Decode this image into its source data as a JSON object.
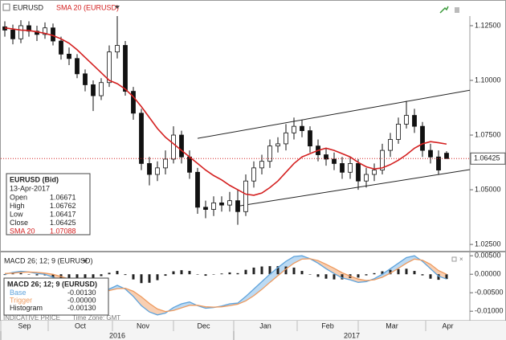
{
  "chart_data": [
    {
      "type": "candlestick",
      "symbol": "EURUSD",
      "indicator": "SMA 20 (EURUSD)",
      "candles": {
        "open": [
          1.1245,
          1.123,
          1.119,
          1.125,
          1.1225,
          1.121,
          1.124,
          1.118,
          1.112,
          1.11,
          1.103,
          1.098,
          1.093,
          1.099,
          1.113,
          1.116,
          1.095,
          1.085,
          1.062,
          1.057,
          1.06,
          1.064,
          1.075,
          1.065,
          1.058,
          1.042,
          1.041,
          1.044,
          1.043,
          1.045,
          1.04,
          1.054,
          1.06,
          1.063,
          1.07,
          1.071,
          1.076,
          1.079,
          1.077,
          1.07,
          1.066,
          1.064,
          1.062,
          1.058,
          1.062,
          1.054,
          1.057,
          1.059,
          1.068,
          1.073,
          1.08,
          1.084,
          1.079,
          1.068,
          1.065,
          1.06671
        ],
        "high": [
          1.127,
          1.1255,
          1.1275,
          1.127,
          1.125,
          1.1265,
          1.126,
          1.12,
          1.115,
          1.112,
          1.105,
          1.1,
          1.101,
          1.116,
          1.13,
          1.118,
          1.097,
          1.087,
          1.065,
          1.063,
          1.068,
          1.079,
          1.077,
          1.068,
          1.06,
          1.045,
          1.047,
          1.047,
          1.049,
          1.05,
          1.057,
          1.063,
          1.066,
          1.073,
          1.074,
          1.08,
          1.083,
          1.082,
          1.079,
          1.073,
          1.069,
          1.067,
          1.065,
          1.065,
          1.064,
          1.06,
          1.062,
          1.071,
          1.076,
          1.083,
          1.0906,
          1.087,
          1.081,
          1.071,
          1.068,
          1.06762
        ],
        "low": [
          1.12,
          1.1165,
          1.117,
          1.12,
          1.118,
          1.119,
          1.116,
          1.1095,
          1.107,
          1.101,
          1.095,
          1.086,
          1.091,
          1.097,
          1.11,
          1.093,
          1.082,
          1.059,
          1.052,
          1.054,
          1.057,
          1.062,
          1.062,
          1.055,
          1.039,
          1.037,
          1.038,
          1.04,
          1.04,
          1.034,
          1.038,
          1.051,
          1.057,
          1.06,
          1.067,
          1.068,
          1.073,
          1.074,
          1.067,
          1.063,
          1.061,
          1.059,
          1.055,
          1.055,
          1.05,
          1.051,
          1.054,
          1.057,
          1.065,
          1.071,
          1.078,
          1.076,
          1.065,
          1.062,
          1.057,
          1.06417
        ],
        "close": [
          1.123,
          1.119,
          1.125,
          1.1225,
          1.121,
          1.124,
          1.118,
          1.112,
          1.11,
          1.103,
          1.098,
          1.093,
          1.099,
          1.113,
          1.116,
          1.095,
          1.085,
          1.062,
          1.057,
          1.06,
          1.064,
          1.075,
          1.065,
          1.058,
          1.042,
          1.041,
          1.044,
          1.043,
          1.045,
          1.04,
          1.054,
          1.06,
          1.063,
          1.07,
          1.071,
          1.076,
          1.079,
          1.077,
          1.07,
          1.066,
          1.064,
          1.062,
          1.058,
          1.062,
          1.054,
          1.057,
          1.059,
          1.068,
          1.073,
          1.08,
          1.084,
          1.079,
          1.068,
          1.065,
          1.059,
          1.06425
        ]
      },
      "sma": {
        "name": "SMA 20",
        "color": "#d42020",
        "values": [
          1.124,
          1.1235,
          1.123,
          1.1228,
          1.1222,
          1.1215,
          1.1205,
          1.119,
          1.117,
          1.114,
          1.1105,
          1.107,
          1.1035,
          1.1,
          1.0985,
          1.096,
          1.0925,
          1.088,
          1.083,
          1.078,
          1.074,
          1.071,
          1.068,
          1.065,
          1.062,
          1.059,
          1.0565,
          1.0545,
          1.052,
          1.05,
          1.048,
          1.0475,
          1.0485,
          1.051,
          1.054,
          1.058,
          1.062,
          1.065,
          1.0665,
          1.068,
          1.069,
          1.068,
          1.0665,
          1.065,
          1.0625,
          1.0605,
          1.0595,
          1.06,
          1.0615,
          1.0635,
          1.066,
          1.069,
          1.071,
          1.072,
          1.0715,
          1.07088
        ]
      },
      "trendlines": [
        {
          "x": [
            24,
            57.9
          ],
          "y": [
            1.0735,
            1.0955
          ]
        },
        {
          "x": [
            29,
            57.9
          ],
          "y": [
            1.0425,
            1.0592
          ]
        }
      ],
      "last_price": 1.06425,
      "ylim": [
        1.0221,
        1.1294
      ],
      "yticks": [
        {
          "value": 1.025,
          "label": "1.02500"
        },
        {
          "value": 1.05,
          "label": "1.05000"
        },
        {
          "value": 1.075,
          "label": "1.07500"
        },
        {
          "value": 1.1,
          "label": "1.10000"
        },
        {
          "value": 1.125,
          "label": "1.12500"
        }
      ],
      "xlim": [
        -0.5,
        57.9
      ],
      "xticks": [
        {
          "value": -0.5,
          "label": "Sep"
        },
        {
          "value": 5.4,
          "label": "Oct"
        },
        {
          "value": 13.4,
          "label": "Nov"
        },
        {
          "value": 21,
          "label": "Dec"
        },
        {
          "value": 28.5,
          "label": "Jan"
        },
        {
          "value": 36.4,
          "label": "Feb"
        },
        {
          "value": 44,
          "label": "Mar"
        },
        {
          "value": 52.4,
          "label": "Apr"
        }
      ],
      "year_ticks": [
        {
          "value": -0.5,
          "label": "2016"
        },
        {
          "value": 28.5,
          "label": "2017"
        }
      ],
      "info_box": {
        "title": "EURUSD (Bid)",
        "date": "13-Apr-2017",
        "rows": [
          {
            "label": "Open",
            "value": 1.06671
          },
          {
            "label": "High",
            "value": 1.06762
          },
          {
            "label": "Low",
            "value": 1.06417
          },
          {
            "label": "Close",
            "value": 1.06425
          },
          {
            "label": "SMA 20",
            "value": 1.07088
          }
        ]
      },
      "footer": [
        "INDICATIVE PRICE",
        "Time Zone: GMT"
      ]
    },
    {
      "type": "macd",
      "title": "MACD 26; 12; 9 (EURUSD)",
      "series": [
        {
          "name": "Base",
          "color": "#5ea3dc",
          "values": [
            0.0,
            0.0005,
            0.0008,
            0.0006,
            0.0002,
            0.0,
            -0.0008,
            -0.0018,
            -0.0028,
            -0.0038,
            -0.0046,
            -0.0052,
            -0.005,
            -0.004,
            -0.003,
            -0.004,
            -0.006,
            -0.0085,
            -0.0102,
            -0.011,
            -0.0105,
            -0.009,
            -0.008,
            -0.0075,
            -0.0085,
            -0.0092,
            -0.009,
            -0.0086,
            -0.008,
            -0.0078,
            -0.006,
            -0.004,
            -0.002,
            0.0,
            0.0018,
            0.0035,
            0.0048,
            0.005,
            0.0042,
            0.003,
            0.0015,
            0.0002,
            -0.001,
            -0.0015,
            -0.0022,
            -0.002,
            -0.0012,
            0.0,
            0.0015,
            0.003,
            0.0045,
            0.005,
            0.0035,
            0.0015,
            -0.0005,
            -0.0013
          ]
        },
        {
          "name": "Trigger",
          "color": "#ee9a5e",
          "values": [
            0.0002,
            0.0003,
            0.0005,
            0.0006,
            0.0005,
            0.0003,
            0.0,
            -0.0006,
            -0.0013,
            -0.0022,
            -0.0031,
            -0.004,
            -0.0045,
            -0.0044,
            -0.0039,
            -0.0038,
            -0.0046,
            -0.0061,
            -0.0079,
            -0.0094,
            -0.0101,
            -0.0098,
            -0.0091,
            -0.0084,
            -0.0084,
            -0.0088,
            -0.0089,
            -0.0088,
            -0.0085,
            -0.0081,
            -0.0072,
            -0.0058,
            -0.0041,
            -0.0022,
            -0.0004,
            0.0014,
            0.003,
            0.0041,
            0.0042,
            0.0037,
            0.0027,
            0.0016,
            0.0004,
            -0.0005,
            -0.0013,
            -0.0017,
            -0.0015,
            -0.0008,
            0.0003,
            0.0016,
            0.003,
            0.0041,
            0.0038,
            0.0027,
            0.001,
            0.0
          ]
        },
        {
          "name": "Histogram",
          "color": "#222222",
          "values": [
            -0.0002,
            0.0002,
            0.0003,
            0.0,
            -0.0003,
            -0.0003,
            -0.0008,
            -0.0012,
            -0.0015,
            -0.0016,
            -0.0015,
            -0.0012,
            -0.0005,
            0.0004,
            0.0009,
            -0.0002,
            -0.0014,
            -0.0024,
            -0.0023,
            -0.0016,
            -0.0004,
            0.0008,
            0.0011,
            0.0009,
            -0.0001,
            -0.0004,
            -0.0001,
            0.0002,
            0.0005,
            0.0003,
            0.0012,
            0.0018,
            0.0021,
            0.0022,
            0.0022,
            0.0021,
            0.0018,
            0.0009,
            0.0,
            -0.0007,
            -0.0012,
            -0.0014,
            -0.0014,
            -0.001,
            -0.0009,
            -0.0003,
            0.0003,
            0.0008,
            0.0012,
            0.0014,
            0.0015,
            0.0009,
            -0.0003,
            -0.0012,
            -0.0015,
            -0.0013
          ]
        }
      ],
      "ylim": [
        -0.0117,
        0.0057
      ],
      "yticks": [
        {
          "value": -0.01,
          "label": "-0.01000"
        },
        {
          "value": -0.005,
          "label": "-0.00500"
        },
        {
          "value": 0,
          "label": "0.00000"
        },
        {
          "value": 0.005,
          "label": "0.00500"
        }
      ],
      "info_box": {
        "rows": [
          {
            "value": -0.0013,
            "label": "-0.00130"
          },
          {
            "value": 0,
            "label": "-0.00000"
          },
          {
            "value": -0.0013,
            "label": "-0.00130"
          }
        ]
      }
    }
  ]
}
